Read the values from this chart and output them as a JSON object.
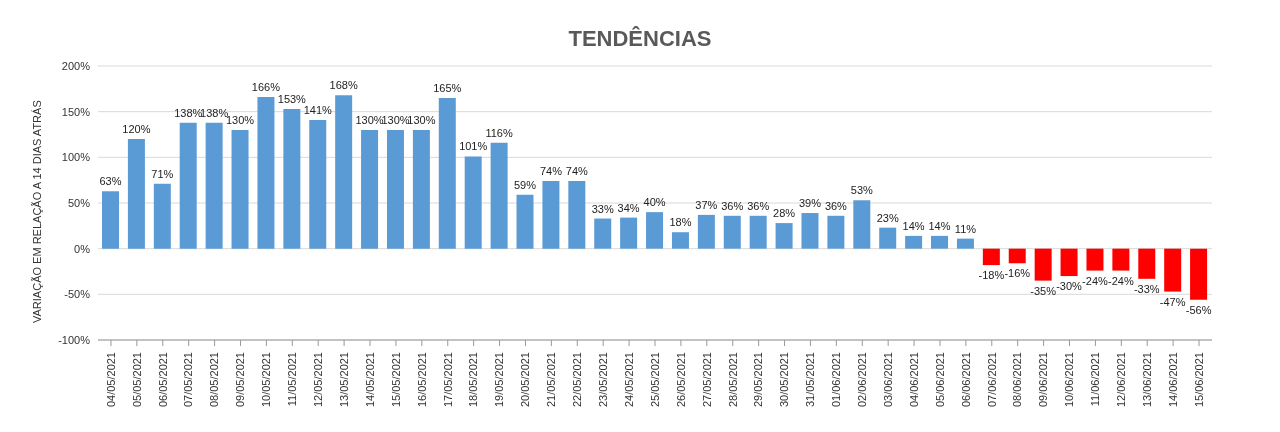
{
  "chart_data": {
    "type": "bar",
    "title": "TENDÊNCIAS",
    "ylabel": "VARIAÇÃO EM RELAÇÃO A 14 DIAS ATRÁS",
    "categories": [
      "04/05/2021",
      "05/05/2021",
      "06/05/2021",
      "07/05/2021",
      "08/05/2021",
      "09/05/2021",
      "10/05/2021",
      "11/05/2021",
      "12/05/2021",
      "13/05/2021",
      "14/05/2021",
      "15/05/2021",
      "16/05/2021",
      "17/05/2021",
      "18/05/2021",
      "19/05/2021",
      "20/05/2021",
      "21/05/2021",
      "22/05/2021",
      "23/05/2021",
      "24/05/2021",
      "25/05/2021",
      "26/05/2021",
      "27/05/2021",
      "28/05/2021",
      "29/05/2021",
      "30/05/2021",
      "31/05/2021",
      "01/06/2021",
      "02/06/2021",
      "03/06/2021",
      "04/06/2021",
      "05/06/2021",
      "06/06/2021",
      "07/06/2021",
      "08/06/2021",
      "09/06/2021",
      "10/06/2021",
      "11/06/2021",
      "12/06/2021",
      "13/06/2021",
      "14/06/2021",
      "15/06/2021"
    ],
    "values": [
      63,
      120,
      71,
      138,
      138,
      130,
      166,
      153,
      141,
      168,
      130,
      130,
      130,
      165,
      101,
      116,
      59,
      74,
      74,
      33,
      34,
      40,
      18,
      37,
      36,
      36,
      28,
      39,
      36,
      53,
      23,
      14,
      14,
      11,
      -18,
      -16,
      -35,
      -30,
      -24,
      -24,
      -33,
      -47,
      -56
    ],
    "value_labels": [
      "63%",
      "120%",
      "71%",
      "138%",
      "138%",
      "130%",
      "166%",
      "153%",
      "141%",
      "168%",
      "130%",
      "130%",
      "130%",
      "165%",
      "101%",
      "116%",
      "59%",
      "74%",
      "74%",
      "33%",
      "34%",
      "40%",
      "18%",
      "37%",
      "36%",
      "36%",
      "28%",
      "39%",
      "36%",
      "53%",
      "23%",
      "14%",
      "14%",
      "11%",
      "-18%",
      "-16%",
      "-35%",
      "-30%",
      "-24%",
      "-24%",
      "-33%",
      "-47%",
      "-56%"
    ],
    "colors": [
      "#5b9bd5",
      "#5b9bd5",
      "#5b9bd5",
      "#5b9bd5",
      "#5b9bd5",
      "#5b9bd5",
      "#5b9bd5",
      "#5b9bd5",
      "#5b9bd5",
      "#5b9bd5",
      "#5b9bd5",
      "#5b9bd5",
      "#5b9bd5",
      "#5b9bd5",
      "#5b9bd5",
      "#5b9bd5",
      "#5b9bd5",
      "#5b9bd5",
      "#5b9bd5",
      "#5b9bd5",
      "#5b9bd5",
      "#5b9bd5",
      "#5b9bd5",
      "#5b9bd5",
      "#5b9bd5",
      "#5b9bd5",
      "#5b9bd5",
      "#5b9bd5",
      "#5b9bd5",
      "#5b9bd5",
      "#5b9bd5",
      "#5b9bd5",
      "#5b9bd5",
      "#5b9bd5",
      "#ff0000",
      "#ff0000",
      "#ff0000",
      "#ff0000",
      "#ff0000",
      "#ff0000",
      "#ff0000",
      "#ff0000",
      "#ff0000"
    ],
    "ylim": [
      -100,
      200
    ],
    "yticks": [
      {
        "value": -100,
        "label": "-100%"
      },
      {
        "value": -50,
        "label": "-50%"
      },
      {
        "value": 0,
        "label": "0%"
      },
      {
        "value": 50,
        "label": "50%"
      },
      {
        "value": 100,
        "label": "100%"
      },
      {
        "value": 150,
        "label": "150%"
      },
      {
        "value": 200,
        "label": "200%"
      }
    ],
    "grid": "y",
    "legend": false
  }
}
